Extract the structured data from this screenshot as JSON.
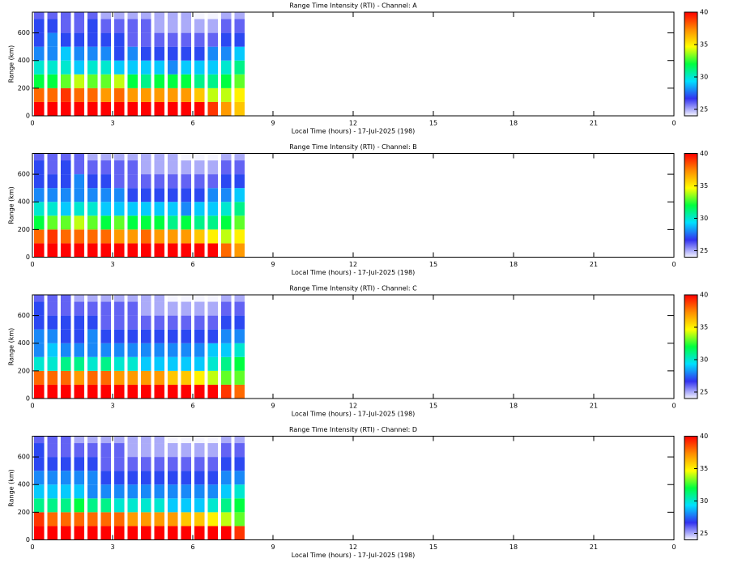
{
  "chart_data": [
    {
      "type": "heatmap",
      "title": "Range Time Intensity (RTI) - Channel: A",
      "xlabel": "Local Time (hours) - 17-Jul-2025 (198)",
      "ylabel": "Range (km)",
      "x": [
        0.25,
        0.75,
        1.25,
        1.75,
        2.25,
        2.75,
        3.25,
        3.75,
        4.25,
        4.75,
        5.25,
        5.75,
        6.25,
        6.75,
        7.25,
        7.75
      ],
      "y": [
        50,
        150,
        250,
        350,
        450,
        550,
        650,
        750
      ],
      "z": [
        [
          40,
          40,
          40,
          40,
          40,
          40,
          40,
          40,
          40,
          40,
          40,
          40,
          40,
          39,
          37,
          36
        ],
        [
          38,
          38,
          39,
          38,
          38,
          37,
          38,
          37,
          37,
          37,
          37,
          37,
          36,
          34,
          34,
          35
        ],
        [
          32,
          32,
          33,
          34,
          33,
          33,
          34,
          32,
          31,
          32,
          32,
          32,
          31,
          31,
          32,
          33
        ],
        [
          30,
          30,
          30,
          29,
          30,
          30,
          29,
          29,
          29,
          29,
          28,
          29,
          29,
          29,
          30,
          31
        ],
        [
          28,
          28,
          29,
          28,
          28,
          28,
          27,
          28,
          27,
          27,
          27,
          27,
          27,
          28,
          28,
          29
        ],
        [
          27,
          28,
          27,
          27,
          27,
          27,
          27,
          26,
          26,
          26,
          26,
          26,
          26,
          26,
          27,
          27
        ],
        [
          27,
          27,
          26,
          26,
          27,
          26,
          26,
          26,
          26,
          25,
          25,
          25,
          25,
          25,
          26,
          26
        ],
        [
          26,
          26,
          26,
          26,
          26,
          25,
          25,
          25,
          25,
          25,
          25,
          25,
          24,
          24,
          25,
          25
        ]
      ],
      "xlim": [
        0,
        24
      ],
      "xticks": [
        0,
        3,
        6,
        9,
        12,
        15,
        18,
        21,
        {
          "value": 24,
          "label": "0"
        }
      ],
      "ylim": [
        0,
        750
      ],
      "yticks": [
        0,
        200,
        400,
        600
      ],
      "zlim": [
        24,
        40
      ],
      "zticks": [
        25,
        30,
        35,
        40
      ],
      "colormap": [
        "#f4f4ff",
        "#3232f0",
        "#00e0ff",
        "#00ff40",
        "#ffff00",
        "#ff8c00",
        "#ff0000"
      ]
    },
    {
      "type": "heatmap",
      "title": "Range Time Intensity (RTI) - Channel: B",
      "xlabel": "Local Time (hours) - 17-Jul-2025 (198)",
      "ylabel": "Range (km)",
      "x": [
        0.25,
        0.75,
        1.25,
        1.75,
        2.25,
        2.75,
        3.25,
        3.75,
        4.25,
        4.75,
        5.25,
        5.75,
        6.25,
        6.75,
        7.25,
        7.75
      ],
      "y": [
        50,
        150,
        250,
        350,
        450,
        550,
        650,
        750
      ],
      "z": [
        [
          40,
          40,
          40,
          40,
          40,
          40,
          40,
          40,
          40,
          40,
          40,
          40,
          40,
          40,
          38,
          37
        ],
        [
          38,
          39,
          38,
          38,
          38,
          38,
          37,
          37,
          38,
          37,
          37,
          37,
          36,
          35,
          34,
          35
        ],
        [
          32,
          33,
          33,
          34,
          33,
          32,
          33,
          32,
          32,
          32,
          31,
          32,
          31,
          31,
          32,
          33
        ],
        [
          30,
          30,
          29,
          30,
          30,
          29,
          29,
          29,
          29,
          29,
          29,
          28,
          29,
          29,
          30,
          31
        ],
        [
          28,
          28,
          28,
          28,
          28,
          28,
          28,
          27,
          27,
          27,
          27,
          27,
          27,
          28,
          28,
          29
        ],
        [
          27,
          27,
          27,
          28,
          27,
          27,
          26,
          26,
          26,
          26,
          26,
          26,
          26,
          26,
          27,
          27
        ],
        [
          27,
          26,
          27,
          26,
          26,
          26,
          26,
          26,
          25,
          25,
          25,
          25,
          25,
          25,
          26,
          26
        ],
        [
          26,
          26,
          26,
          26,
          25,
          25,
          25,
          25,
          25,
          25,
          25,
          24,
          24,
          24,
          25,
          25
        ]
      ],
      "xlim": [
        0,
        24
      ],
      "xticks": [
        0,
        3,
        6,
        9,
        12,
        15,
        18,
        21,
        {
          "value": 24,
          "label": "0"
        }
      ],
      "ylim": [
        0,
        750
      ],
      "yticks": [
        0,
        200,
        400,
        600
      ],
      "zlim": [
        24,
        40
      ],
      "zticks": [
        25,
        30,
        35,
        40
      ],
      "colormap": [
        "#f4f4ff",
        "#3232f0",
        "#00e0ff",
        "#00ff40",
        "#ffff00",
        "#ff8c00",
        "#ff0000"
      ]
    },
    {
      "type": "heatmap",
      "title": "Range Time Intensity (RTI) - Channel: C",
      "xlabel": "Local Time (hours) - 17-Jul-2025 (198)",
      "ylabel": "Range (km)",
      "x": [
        0.25,
        0.75,
        1.25,
        1.75,
        2.25,
        2.75,
        3.25,
        3.75,
        4.25,
        4.75,
        5.25,
        5.75,
        6.25,
        6.75,
        7.25,
        7.75
      ],
      "y": [
        50,
        150,
        250,
        350,
        450,
        550,
        650,
        750
      ],
      "z": [
        [
          40,
          40,
          40,
          40,
          40,
          40,
          40,
          40,
          40,
          40,
          40,
          40,
          40,
          40,
          39,
          38
        ],
        [
          38,
          38,
          38,
          37,
          38,
          38,
          37,
          37,
          37,
          37,
          36,
          36,
          35,
          34,
          33,
          33
        ],
        [
          30,
          30,
          31,
          31,
          30,
          31,
          30,
          30,
          29,
          29,
          29,
          29,
          29,
          30,
          31,
          32
        ],
        [
          28,
          29,
          28,
          28,
          28,
          28,
          28,
          28,
          28,
          28,
          28,
          28,
          28,
          29,
          29,
          30
        ],
        [
          28,
          28,
          27,
          27,
          28,
          27,
          27,
          27,
          27,
          27,
          27,
          27,
          27,
          27,
          28,
          28
        ],
        [
          27,
          27,
          27,
          27,
          27,
          26,
          26,
          26,
          26,
          26,
          26,
          26,
          26,
          26,
          27,
          27
        ],
        [
          27,
          26,
          26,
          26,
          26,
          26,
          26,
          26,
          25,
          25,
          25,
          25,
          25,
          25,
          26,
          26
        ],
        [
          26,
          26,
          26,
          25,
          25,
          25,
          25,
          25,
          25,
          25,
          24,
          24,
          24,
          24,
          25,
          25
        ]
      ],
      "xlim": [
        0,
        24
      ],
      "xticks": [
        0,
        3,
        6,
        9,
        12,
        15,
        18,
        21,
        {
          "value": 24,
          "label": "0"
        }
      ],
      "ylim": [
        0,
        750
      ],
      "yticks": [
        0,
        200,
        400,
        600
      ],
      "zlim": [
        24,
        40
      ],
      "zticks": [
        25,
        30,
        35,
        40
      ],
      "colormap": [
        "#f4f4ff",
        "#3232f0",
        "#00e0ff",
        "#00ff40",
        "#ffff00",
        "#ff8c00",
        "#ff0000"
      ]
    },
    {
      "type": "heatmap",
      "title": "Range Time Intensity (RTI) - Channel: D",
      "xlabel": "Local Time (hours) - 17-Jul-2025 (198)",
      "ylabel": "Range (km)",
      "x": [
        0.25,
        0.75,
        1.25,
        1.75,
        2.25,
        2.75,
        3.25,
        3.75,
        4.25,
        4.75,
        5.25,
        5.75,
        6.25,
        6.75,
        7.25,
        7.75
      ],
      "y": [
        50,
        150,
        250,
        350,
        450,
        550,
        650,
        750
      ],
      "z": [
        [
          40,
          40,
          40,
          40,
          40,
          40,
          40,
          40,
          40,
          40,
          40,
          40,
          40,
          40,
          40,
          39
        ],
        [
          39,
          38,
          38,
          38,
          38,
          38,
          38,
          37,
          37,
          37,
          37,
          36,
          36,
          35,
          34,
          33
        ],
        [
          31,
          31,
          31,
          32,
          31,
          31,
          30,
          30,
          30,
          30,
          29,
          29,
          29,
          30,
          31,
          32
        ],
        [
          29,
          29,
          29,
          29,
          28,
          28,
          28,
          28,
          28,
          28,
          28,
          28,
          28,
          28,
          29,
          30
        ],
        [
          28,
          28,
          28,
          28,
          28,
          27,
          27,
          27,
          27,
          27,
          27,
          27,
          27,
          27,
          28,
          28
        ],
        [
          27,
          27,
          27,
          27,
          27,
          26,
          26,
          26,
          26,
          26,
          26,
          26,
          26,
          26,
          27,
          27
        ],
        [
          27,
          26,
          26,
          26,
          26,
          26,
          26,
          25,
          25,
          25,
          25,
          25,
          25,
          25,
          26,
          26
        ],
        [
          26,
          26,
          26,
          25,
          25,
          25,
          25,
          25,
          25,
          25,
          24,
          24,
          24,
          24,
          25,
          25
        ]
      ],
      "xlim": [
        0,
        24
      ],
      "xticks": [
        0,
        3,
        6,
        9,
        12,
        15,
        18,
        21,
        {
          "value": 24,
          "label": "0"
        }
      ],
      "ylim": [
        0,
        750
      ],
      "yticks": [
        0,
        200,
        400,
        600
      ],
      "zlim": [
        24,
        40
      ],
      "zticks": [
        25,
        30,
        35,
        40
      ],
      "colormap": [
        "#f4f4ff",
        "#3232f0",
        "#00e0ff",
        "#00ff40",
        "#ffff00",
        "#ff8c00",
        "#ff0000"
      ]
    }
  ]
}
